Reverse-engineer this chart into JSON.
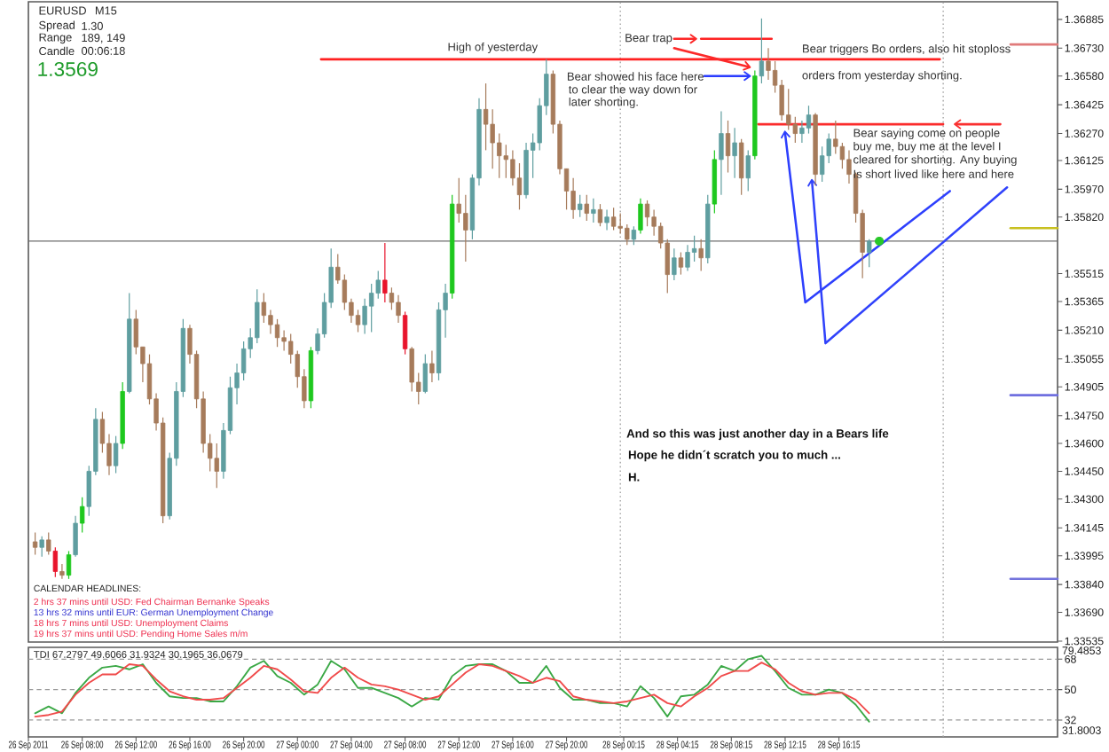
{
  "chart_data": [
    {
      "type": "candlestick",
      "title": "EURUSD",
      "subtitle": "M15",
      "x": [
        "2011-09-26T04:30",
        "2011-09-26T05:00",
        "2011-09-26T05:30",
        "2011-09-26T06:00",
        "2011-09-26T06:30",
        "2011-09-26T07:00",
        "2011-09-26T07:30",
        "2011-09-26T08:00",
        "2011-09-26T08:30",
        "2011-09-26T09:00",
        "2011-09-26T09:30",
        "2011-09-26T10:00",
        "2011-09-26T10:30",
        "2011-09-26T11:00",
        "2011-09-26T11:30",
        "2011-09-26T12:00",
        "2011-09-26T12:30",
        "2011-09-26T13:00",
        "2011-09-26T13:30",
        "2011-09-26T14:00",
        "2011-09-26T14:30",
        "2011-09-26T15:00",
        "2011-09-26T15:30",
        "2011-09-26T16:00",
        "2011-09-26T16:30",
        "2011-09-26T17:00",
        "2011-09-26T17:30",
        "2011-09-26T18:00",
        "2011-09-26T18:30",
        "2011-09-26T19:00",
        "2011-09-26T19:30",
        "2011-09-26T20:00",
        "2011-09-26T20:30",
        "2011-09-26T21:00",
        "2011-09-26T21:30",
        "2011-09-26T22:00",
        "2011-09-26T22:30",
        "2011-09-26T23:00",
        "2011-09-26T23:30",
        "2011-09-27T00:00",
        "2011-09-27T00:30",
        "2011-09-27T01:00",
        "2011-09-27T01:30",
        "2011-09-27T02:00",
        "2011-09-27T02:30",
        "2011-09-27T03:00",
        "2011-09-27T03:30",
        "2011-09-27T04:00",
        "2011-09-27T04:30",
        "2011-09-27T05:00",
        "2011-09-27T05:30",
        "2011-09-27T06:00",
        "2011-09-27T06:30",
        "2011-09-27T07:00",
        "2011-09-27T07:30",
        "2011-09-27T08:00",
        "2011-09-27T08:30",
        "2011-09-27T09:00",
        "2011-09-27T09:30",
        "2011-09-27T10:00",
        "2011-09-27T10:30",
        "2011-09-27T11:00",
        "2011-09-27T11:30",
        "2011-09-27T12:00",
        "2011-09-27T12:30",
        "2011-09-27T13:00",
        "2011-09-27T13:30",
        "2011-09-27T14:00",
        "2011-09-27T14:30",
        "2011-09-27T15:00",
        "2011-09-27T15:30",
        "2011-09-27T16:00",
        "2011-09-27T16:30",
        "2011-09-27T17:00",
        "2011-09-27T17:30",
        "2011-09-27T18:00",
        "2011-09-27T18:30",
        "2011-09-27T19:00",
        "2011-09-27T19:30",
        "2011-09-27T20:00",
        "2011-09-27T20:30",
        "2011-09-27T21:00",
        "2011-09-27T21:30",
        "2011-09-27T22:00",
        "2011-09-27T22:30",
        "2011-09-27T23:00",
        "2011-09-27T23:30",
        "2011-09-28T00:00",
        "2011-09-28T00:30",
        "2011-09-28T01:00",
        "2011-09-28T01:30",
        "2011-09-28T02:00",
        "2011-09-28T02:30",
        "2011-09-28T03:00",
        "2011-09-28T03:30",
        "2011-09-28T04:00",
        "2011-09-28T04:30",
        "2011-09-28T05:00",
        "2011-09-28T05:30",
        "2011-09-28T06:00",
        "2011-09-28T06:30",
        "2011-09-28T07:00",
        "2011-09-28T07:30",
        "2011-09-28T08:00",
        "2011-09-28T08:30",
        "2011-09-28T09:00",
        "2011-09-28T09:30",
        "2011-09-28T10:00",
        "2011-09-28T10:30",
        "2011-09-28T11:00",
        "2011-09-28T11:30",
        "2011-09-28T12:00",
        "2011-09-28T12:30",
        "2011-09-28T13:00",
        "2011-09-28T13:30",
        "2011-09-28T14:00",
        "2011-09-28T14:30",
        "2011-09-28T15:00",
        "2011-09-28T15:30",
        "2011-09-28T16:00",
        "2011-09-28T16:30",
        "2011-09-28T17:00",
        "2011-09-28T17:30",
        "2011-09-28T18:00",
        "2011-09-28T18:30"
      ],
      "ohlc": [
        [
          1.3407,
          1.3412,
          1.34,
          1.3404
        ],
        [
          1.3404,
          1.341,
          1.3399,
          1.3408
        ],
        [
          1.3408,
          1.3412,
          1.34,
          1.3402
        ],
        [
          1.3402,
          1.3404,
          1.3388,
          1.3391
        ],
        [
          1.3391,
          1.3395,
          1.3387,
          1.3389
        ],
        [
          1.3389,
          1.3402,
          1.3387,
          1.34
        ],
        [
          1.34,
          1.3421,
          1.3399,
          1.3417
        ],
        [
          1.3417,
          1.3431,
          1.3412,
          1.3426
        ],
        [
          1.3426,
          1.3448,
          1.3421,
          1.3445
        ],
        [
          1.3445,
          1.3479,
          1.3443,
          1.3473
        ],
        [
          1.3473,
          1.3477,
          1.3455,
          1.346
        ],
        [
          1.346,
          1.3465,
          1.3443,
          1.3448
        ],
        [
          1.3448,
          1.3464,
          1.3444,
          1.346
        ],
        [
          1.346,
          1.3493,
          1.3457,
          1.3488
        ],
        [
          1.3488,
          1.3541,
          1.3487,
          1.3527
        ],
        [
          1.3527,
          1.3532,
          1.3508,
          1.3512
        ],
        [
          1.3512,
          1.3512,
          1.3493,
          1.3503
        ],
        [
          1.3503,
          1.3508,
          1.3481,
          1.3484
        ],
        [
          1.3484,
          1.3487,
          1.3467,
          1.3471
        ],
        [
          1.3471,
          1.3474,
          1.3417,
          1.3421
        ],
        [
          1.3421,
          1.3455,
          1.3419,
          1.3452
        ],
        [
          1.3452,
          1.3493,
          1.3448,
          1.3488
        ],
        [
          1.3488,
          1.3527,
          1.3485,
          1.3522
        ],
        [
          1.3522,
          1.3524,
          1.3503,
          1.3508
        ],
        [
          1.3508,
          1.351,
          1.3479,
          1.3484
        ],
        [
          1.3484,
          1.3488,
          1.3455,
          1.346
        ],
        [
          1.346,
          1.3465,
          1.3445,
          1.3452
        ],
        [
          1.3452,
          1.346,
          1.3436,
          1.3445
        ],
        [
          1.3445,
          1.3471,
          1.3441,
          1.3467
        ],
        [
          1.3467,
          1.3496,
          1.3465,
          1.349
        ],
        [
          1.349,
          1.3503,
          1.3481,
          1.3498
        ],
        [
          1.3498,
          1.3515,
          1.3494,
          1.3511
        ],
        [
          1.3511,
          1.3522,
          1.3506,
          1.3517
        ],
        [
          1.3517,
          1.3543,
          1.3514,
          1.3536
        ],
        [
          1.3536,
          1.3541,
          1.3525,
          1.3529
        ],
        [
          1.3529,
          1.3532,
          1.3519,
          1.3524
        ],
        [
          1.3524,
          1.3527,
          1.3512,
          1.3517
        ],
        [
          1.3517,
          1.3521,
          1.351,
          1.3515
        ],
        [
          1.3515,
          1.3519,
          1.3503,
          1.3508
        ],
        [
          1.3508,
          1.351,
          1.349,
          1.3496
        ],
        [
          1.3496,
          1.35,
          1.3479,
          1.3483
        ],
        [
          1.3483,
          1.3512,
          1.3479,
          1.351
        ],
        [
          1.351,
          1.3522,
          1.3508,
          1.3519
        ],
        [
          1.3519,
          1.3541,
          1.3517,
          1.3536
        ],
        [
          1.3536,
          1.3565,
          1.3533,
          1.3555
        ],
        [
          1.3555,
          1.3562,
          1.3546,
          1.3548
        ],
        [
          1.3548,
          1.3551,
          1.3532,
          1.3536
        ],
        [
          1.3536,
          1.3538,
          1.3525,
          1.3529
        ],
        [
          1.3529,
          1.3532,
          1.352,
          1.3524
        ],
        [
          1.3524,
          1.3538,
          1.3519,
          1.3534
        ],
        [
          1.3534,
          1.3546,
          1.352,
          1.3541
        ],
        [
          1.3541,
          1.3553,
          1.3538,
          1.3548
        ],
        [
          1.3548,
          1.3568,
          1.3536,
          1.3541
        ],
        [
          1.3541,
          1.3544,
          1.3532,
          1.3536
        ],
        [
          1.3536,
          1.354,
          1.3525,
          1.3529
        ],
        [
          1.3529,
          1.3531,
          1.3508,
          1.3511
        ],
        [
          1.3511,
          1.3512,
          1.3488,
          1.3493
        ],
        [
          1.3493,
          1.3498,
          1.3481,
          1.3488
        ],
        [
          1.3488,
          1.3508,
          1.3487,
          1.3503
        ],
        [
          1.3503,
          1.351,
          1.3493,
          1.3498
        ],
        [
          1.3498,
          1.3536,
          1.3494,
          1.3532
        ],
        [
          1.3532,
          1.3546,
          1.3517,
          1.3541
        ],
        [
          1.3541,
          1.3594,
          1.3538,
          1.3589
        ],
        [
          1.3589,
          1.3603,
          1.3579,
          1.3584
        ],
        [
          1.3584,
          1.3594,
          1.3558,
          1.3575
        ],
        [
          1.3575,
          1.3605,
          1.357,
          1.3603
        ],
        [
          1.3603,
          1.3646,
          1.3599,
          1.364
        ],
        [
          1.364,
          1.3654,
          1.3618,
          1.3632
        ],
        [
          1.3632,
          1.364,
          1.3608,
          1.3622
        ],
        [
          1.3622,
          1.3627,
          1.3603,
          1.3615
        ],
        [
          1.3615,
          1.3621,
          1.3603,
          1.3613
        ],
        [
          1.3613,
          1.3618,
          1.3599,
          1.3603
        ],
        [
          1.3603,
          1.3611,
          1.3586,
          1.3594
        ],
        [
          1.3594,
          1.3622,
          1.3592,
          1.3618
        ],
        [
          1.3618,
          1.3627,
          1.3603,
          1.3622
        ],
        [
          1.3622,
          1.3646,
          1.3618,
          1.3642
        ],
        [
          1.3642,
          1.3667,
          1.3637,
          1.3659
        ],
        [
          1.3659,
          1.3661,
          1.3627,
          1.3632
        ],
        [
          1.3632,
          1.3634,
          1.3605,
          1.3608
        ],
        [
          1.3608,
          1.3608,
          1.3586,
          1.3596
        ],
        [
          1.3596,
          1.3603,
          1.3581,
          1.3586
        ],
        [
          1.3586,
          1.3594,
          1.3582,
          1.3589
        ],
        [
          1.3589,
          1.3594,
          1.358,
          1.3584
        ],
        [
          1.3584,
          1.3592,
          1.3579,
          1.3586
        ],
        [
          1.3586,
          1.3589,
          1.3577,
          1.3579
        ],
        [
          1.3579,
          1.3586,
          1.3575,
          1.3582
        ],
        [
          1.3582,
          1.3587,
          1.3575,
          1.3577
        ],
        [
          1.3577,
          1.3584,
          1.3573,
          1.3576
        ],
        [
          1.3576,
          1.3578,
          1.3567,
          1.357
        ],
        [
          1.357,
          1.3577,
          1.3567,
          1.3575
        ],
        [
          1.3575,
          1.3592,
          1.3573,
          1.3589
        ],
        [
          1.3589,
          1.3591,
          1.3577,
          1.3582
        ],
        [
          1.3582,
          1.3586,
          1.3572,
          1.3577
        ],
        [
          1.3577,
          1.3579,
          1.3565,
          1.3568
        ],
        [
          1.3568,
          1.357,
          1.3541,
          1.3551
        ],
        [
          1.3551,
          1.3565,
          1.3548,
          1.356
        ],
        [
          1.356,
          1.3563,
          1.3551,
          1.3555
        ],
        [
          1.3555,
          1.3567,
          1.3553,
          1.3563
        ],
        [
          1.3563,
          1.3572,
          1.3558,
          1.3565
        ],
        [
          1.3565,
          1.357,
          1.3553,
          1.356
        ],
        [
          1.356,
          1.3594,
          1.3557,
          1.3589
        ],
        [
          1.3589,
          1.3618,
          1.3584,
          1.3613
        ],
        [
          1.3613,
          1.3639,
          1.3594,
          1.3627
        ],
        [
          1.3627,
          1.3634,
          1.3606,
          1.3615
        ],
        [
          1.3615,
          1.363,
          1.3603,
          1.3622
        ],
        [
          1.3622,
          1.3624,
          1.3594,
          1.3603
        ],
        [
          1.3603,
          1.3618,
          1.3596,
          1.3615
        ],
        [
          1.3615,
          1.3661,
          1.3613,
          1.3658
        ],
        [
          1.3658,
          1.3689,
          1.3654,
          1.3666
        ],
        [
          1.3666,
          1.3673,
          1.3656,
          1.3661
        ],
        [
          1.3661,
          1.3666,
          1.3649,
          1.3653
        ],
        [
          1.3653,
          1.3656,
          1.3634,
          1.3637
        ],
        [
          1.3637,
          1.3651,
          1.3629,
          1.3632
        ],
        [
          1.3632,
          1.3636,
          1.3622,
          1.3627
        ],
        [
          1.3627,
          1.3634,
          1.3622,
          1.363
        ],
        [
          1.363,
          1.3642,
          1.3627,
          1.3637
        ],
        [
          1.3637,
          1.3638,
          1.3599,
          1.3605
        ],
        [
          1.3605,
          1.362,
          1.3601,
          1.3615
        ],
        [
          1.3615,
          1.3627,
          1.3611,
          1.3624
        ],
        [
          1.3624,
          1.3634,
          1.3616,
          1.362
        ],
        [
          1.362,
          1.3622,
          1.3608,
          1.3613
        ],
        [
          1.3613,
          1.3618,
          1.36,
          1.3605
        ],
        [
          1.3605,
          1.3606,
          1.3579,
          1.3584
        ],
        [
          1.3584,
          1.3586,
          1.3549,
          1.3563
        ],
        [
          1.3563,
          1.357,
          1.3555,
          1.3569
        ]
      ],
      "colors": [
        "#a67b5b",
        "#5f9ea0",
        "#a67b5b",
        "#e8142c",
        "#a67b5b",
        "#1ec81e",
        "#5f9ea0",
        "#1ec81e",
        "#5f9ea0",
        "#5f9ea0",
        "#a67b5b",
        "#a67b5b",
        "#5f9ea0",
        "#1ec81e",
        "#5f9ea0",
        "#a67b5b",
        "#a67b5b",
        "#a67b5b",
        "#a67b5b",
        "#a67b5b",
        "#5f9ea0",
        "#5f9ea0",
        "#5f9ea0",
        "#a67b5b",
        "#a67b5b",
        "#a67b5b",
        "#a67b5b",
        "#a67b5b",
        "#5f9ea0",
        "#5f9ea0",
        "#5f9ea0",
        "#5f9ea0",
        "#5f9ea0",
        "#5f9ea0",
        "#a67b5b",
        "#a67b5b",
        "#a67b5b",
        "#a67b5b",
        "#a67b5b",
        "#a67b5b",
        "#a67b5b",
        "#1ec81e",
        "#5f9ea0",
        "#5f9ea0",
        "#5f9ea0",
        "#a67b5b",
        "#a67b5b",
        "#a67b5b",
        "#a67b5b",
        "#5f9ea0",
        "#5f9ea0",
        "#5f9ea0",
        "#e8142c",
        "#a67b5b",
        "#a67b5b",
        "#e8142c",
        "#a67b5b",
        "#a67b5b",
        "#5f9ea0",
        "#a67b5b",
        "#5f9ea0",
        "#5f9ea0",
        "#1ec81e",
        "#a67b5b",
        "#a67b5b",
        "#5f9ea0",
        "#5f9ea0",
        "#a67b5b",
        "#a67b5b",
        "#a67b5b",
        "#a67b5b",
        "#a67b5b",
        "#a67b5b",
        "#5f9ea0",
        "#5f9ea0",
        "#5f9ea0",
        "#5f9ea0",
        "#a67b5b",
        "#a67b5b",
        "#a67b5b",
        "#a67b5b",
        "#5f9ea0",
        "#a67b5b",
        "#5f9ea0",
        "#a67b5b",
        "#5f9ea0",
        "#a67b5b",
        "#a67b5b",
        "#a67b5b",
        "#5f9ea0",
        "#1ec81e",
        "#a67b5b",
        "#a67b5b",
        "#a67b5b",
        "#a67b5b",
        "#5f9ea0",
        "#a67b5b",
        "#5f9ea0",
        "#5f9ea0",
        "#a67b5b",
        "#5f9ea0",
        "#1ec81e",
        "#5f9ea0",
        "#a67b5b",
        "#5f9ea0",
        "#a67b5b",
        "#5f9ea0",
        "#1ec81e",
        "#5f9ea0",
        "#a67b5b",
        "#a67b5b",
        "#a67b5b",
        "#a67b5b",
        "#a67b5b",
        "#5f9ea0",
        "#5f9ea0",
        "#a67b5b",
        "#5f9ea0",
        "#5f9ea0",
        "#a67b5b",
        "#a67b5b",
        "#a67b5b",
        "#a67b5b",
        "#a67b5b",
        "#5f9ea0"
      ],
      "series": [
        {
          "type": "line",
          "color": "#ff2020",
          "x": [
            "2011-09-27T01:45",
            "2011-09-28T23:45"
          ],
          "values": [
            1.3667,
            1.3667
          ]
        },
        {
          "type": "line",
          "color": "#fe2323",
          "x": [
            "2011-09-28T06:00",
            "2011-09-28T11:15"
          ],
          "values": [
            1.3678,
            1.3678
          ]
        },
        {
          "type": "line",
          "color": "#fd2626",
          "x": [
            "2011-09-28T04:00",
            "2011-09-28T05:30"
          ],
          "values": [
            1.3678,
            1.3678
          ]
        },
        {
          "type": "line",
          "color": "#fc2929",
          "x": [
            "2011-09-28T04:00",
            "2011-09-28T09:30"
          ],
          "values": [
            1.3673,
            1.3663
          ]
        },
        {
          "type": "line",
          "color": "#2a3cff",
          "x": [
            "2011-09-28T06:15",
            "2011-09-28T09:30"
          ],
          "values": [
            1.3658,
            1.3658
          ]
        },
        {
          "type": "line",
          "color": "#fb2c2c",
          "x": [
            "2011-09-28T10:15",
            "2011-09-29T00:00"
          ],
          "values": [
            1.3632,
            1.3632
          ]
        },
        {
          "type": "line",
          "color": "#fa2f2f",
          "x": [
            "2011-09-29T04:15",
            "2011-09-29T01:00"
          ],
          "values": [
            1.3632,
            1.3632
          ]
        },
        {
          "type": "line",
          "color": "#2d3ffd",
          "x": [
            "2011-09-29T00:30",
            "2011-09-28T13:45",
            "2011-09-28T12:15"
          ],
          "values": [
            1.3596,
            1.3536,
            1.3627
          ]
        },
        {
          "type": "line",
          "color": "#3042fb",
          "x": [
            "2011-09-29T04:45",
            "2011-09-28T15:15",
            "2011-09-28T14:15"
          ],
          "values": [
            1.3598,
            1.3514,
            1.3601
          ]
        },
        {
          "type": "line",
          "color": "#e07a7a",
          "x": [
            "2011-09-29T05:00",
            "2011-09-29T08:30"
          ],
          "values": [
            1.3675,
            1.3675
          ]
        },
        {
          "type": "line",
          "color": "#c8c020",
          "x": [
            "2011-09-29T05:00",
            "2011-09-29T08:30"
          ],
          "values": [
            1.3576,
            1.3576
          ]
        },
        {
          "type": "line",
          "color": "#7070e0",
          "x": [
            "2011-09-29T05:00",
            "2011-09-29T08:30"
          ],
          "values": [
            1.3486,
            1.3486
          ]
        },
        {
          "type": "line",
          "color": "#7474dc",
          "x": [
            "2011-09-29T05:00",
            "2011-09-29T08:30"
          ],
          "values": [
            1.3387,
            1.3387
          ]
        },
        {
          "type": "scatter",
          "color": "#28c828",
          "marker": "circle",
          "x": [
            "2011-09-28T19:15"
          ],
          "values": [
            1.3569
          ]
        }
      ],
      "ref_lines": [
        {
          "axis": "y",
          "value": 1.3569,
          "color": "#6e6e6e",
          "line_style": "solid"
        },
        {
          "axis": "x",
          "value": "2011-09-28T00:00",
          "color": "#a0a0a0",
          "line_style": "dotted"
        },
        {
          "axis": "x",
          "value": "2011-09-29T00:00",
          "color": "#a0a0a0",
          "line_style": "dotted"
        }
      ],
      "annotations": [
        "Spread",
        "1.30",
        "Range",
        "189, 149",
        "Candle",
        "00:06:18",
        "1.3569",
        "High of yesterday",
        "Bear trap",
        "Bear showed his face here",
        "to clear the way down for",
        "later shorting.",
        "Bear triggers Bo orders, also hit stoploss",
        "orders from yesterday shorting.",
        "Bear saying come on people",
        "buy me, buy me at the level I",
        "cleared for shorting. Any buying",
        "Is short lived like here and here",
        "And so this was just another day in a Bears life",
        "Hope he didn´t scratch you to much ...",
        "H.",
        "CALENDAR HEADLINES:",
        "2 hrs 37 mins until USD: Fed Chairman Bernanke Speaks",
        "13 hrs 32 mins until EUR: German Unemployment Change",
        "18 hrs 7 mins until USD: Unemployment Claims",
        "19 hrs 37 mins until USD: Pending Home Sales m/m"
      ],
      "xlim": [
        "2011-09-26T04:00",
        "2011-09-29T08:30"
      ],
      "ylim": [
        1.3353,
        1.3698
      ],
      "yticks": [
        1.36885,
        {
          "value": 1.3673,
          "label": "1.36730"
        },
        {
          "value": 1.3658,
          "label": "1.36580"
        },
        1.36425,
        {
          "value": 1.3627,
          "label": "1.36270"
        },
        1.36125,
        {
          "value": 1.3597,
          "label": "1.35970"
        },
        {
          "value": 1.3582,
          "label": "1.35820"
        },
        1.35515,
        1.35365,
        {
          "value": 1.3521,
          "label": "1.35210"
        },
        1.35055,
        1.34905,
        {
          "value": 1.3475,
          "label": "1.34750"
        },
        {
          "value": 1.346,
          "label": "1.34600"
        },
        {
          "value": 1.3445,
          "label": "1.34450"
        },
        {
          "value": 1.343,
          "label": "1.34300"
        },
        1.34145,
        1.33995,
        {
          "value": 1.3384,
          "label": "1.33840"
        },
        {
          "value": 1.3369,
          "label": "1.33690"
        },
        1.33535
      ],
      "tick_labels": "y"
    },
    {
      "type": "line",
      "title": "TDI 67.2797 49.6066 31.9324 30.1965 36.0679",
      "x": [
        "2011-09-26T04:30",
        "2011-09-26T05:30",
        "2011-09-26T06:30",
        "2011-09-26T07:30",
        "2011-09-26T08:30",
        "2011-09-26T09:30",
        "2011-09-26T10:30",
        "2011-09-26T11:30",
        "2011-09-26T12:30",
        "2011-09-26T13:30",
        "2011-09-26T14:30",
        "2011-09-26T15:30",
        "2011-09-26T16:30",
        "2011-09-26T17:30",
        "2011-09-26T18:30",
        "2011-09-26T19:30",
        "2011-09-26T20:30",
        "2011-09-26T21:30",
        "2011-09-26T22:30",
        "2011-09-26T23:30",
        "2011-09-27T00:30",
        "2011-09-27T01:30",
        "2011-09-27T02:30",
        "2011-09-27T03:30",
        "2011-09-27T04:30",
        "2011-09-27T05:30",
        "2011-09-27T06:30",
        "2011-09-27T07:30",
        "2011-09-27T08:30",
        "2011-09-27T09:30",
        "2011-09-27T10:30",
        "2011-09-27T11:30",
        "2011-09-27T12:30",
        "2011-09-27T13:30",
        "2011-09-27T14:30",
        "2011-09-27T15:30",
        "2011-09-27T16:30",
        "2011-09-27T17:30",
        "2011-09-27T18:30",
        "2011-09-27T19:30",
        "2011-09-27T20:30",
        "2011-09-27T21:30",
        "2011-09-27T22:30",
        "2011-09-27T23:30",
        "2011-09-28T00:30",
        "2011-09-28T01:30",
        "2011-09-28T02:30",
        "2011-09-28T03:30",
        "2011-09-28T04:30",
        "2011-09-28T05:30",
        "2011-09-28T06:30",
        "2011-09-28T07:30",
        "2011-09-28T08:30",
        "2011-09-28T09:30",
        "2011-09-28T10:30",
        "2011-09-28T11:30",
        "2011-09-28T12:30",
        "2011-09-28T13:30",
        "2011-09-28T14:30",
        "2011-09-28T15:30",
        "2011-09-28T16:30",
        "2011-09-28T17:30",
        "2011-09-28T18:30"
      ],
      "series": [
        {
          "color": "#3aa845",
          "values": [
            36,
            40,
            36,
            48,
            57,
            63,
            64,
            62,
            65,
            54,
            46,
            45,
            45,
            43,
            43,
            52,
            63,
            67,
            58,
            54,
            47,
            53,
            67,
            62,
            51,
            51,
            48,
            45,
            40,
            45,
            44,
            58,
            64,
            65,
            65,
            61,
            54,
            54,
            64,
            51,
            44,
            44,
            42,
            42,
            40,
            52,
            45,
            34,
            46,
            47,
            53,
            64,
            61,
            68,
            70,
            61,
            51,
            47,
            47,
            50,
            48,
            41,
            31
          ]
        },
        {
          "color": "#f04a4a",
          "values": [
            34,
            35,
            37,
            47,
            54,
            59,
            59,
            65,
            64,
            56,
            49,
            46,
            44,
            44,
            45,
            51,
            57,
            64,
            62,
            56,
            49,
            48,
            57,
            63,
            57,
            53,
            52,
            50,
            47,
            44,
            46,
            53,
            60,
            65,
            64,
            61,
            58,
            54,
            57,
            55,
            46,
            44,
            43,
            42,
            43,
            45,
            47,
            42,
            40,
            46,
            51,
            58,
            61,
            61,
            66,
            62,
            54,
            49,
            47,
            48,
            48,
            44,
            36
          ]
        }
      ],
      "ref_lines": [
        {
          "axis": "y",
          "value": 68,
          "color": "#9a9a9a",
          "line_style": "dashed"
        },
        {
          "axis": "y",
          "value": 50,
          "color": "#9a9a9a",
          "line_style": "dashed"
        },
        {
          "axis": "y",
          "value": 32,
          "color": "#9a9a9a",
          "line_style": "dashed"
        },
        {
          "axis": "x",
          "value": "2011-09-28T00:00",
          "color": "#a0a0a0",
          "line_style": "dotted"
        },
        {
          "axis": "x",
          "value": "2011-09-29T00:00",
          "color": "#a0a0a0",
          "line_style": "dotted"
        }
      ],
      "annotations": [
        "79.4853",
        "31.8003"
      ],
      "xlim": [
        "2011-09-26T04:00",
        "2011-09-29T08:30"
      ],
      "ylim": [
        22,
        75
      ],
      "yticks": [
        68,
        50,
        32
      ],
      "xticks": [
        {
          "value": "2011-09-26T04:00",
          "label": "26 Sep 2011"
        },
        {
          "value": "2011-09-26T08:00",
          "label": "26 Sep 08:00"
        },
        {
          "value": "2011-09-26T12:00",
          "label": "26 Sep 12:00"
        },
        {
          "value": "2011-09-26T16:00",
          "label": "26 Sep 16:00"
        },
        {
          "value": "2011-09-26T20:00",
          "label": "26 Sep 20:00"
        },
        {
          "value": "2011-09-27T00:00",
          "label": "27 Sep 00:00"
        },
        {
          "value": "2011-09-27T04:00",
          "label": "27 Sep 04:00"
        },
        {
          "value": "2011-09-27T08:00",
          "label": "27 Sep 08:00"
        },
        {
          "value": "2011-09-27T12:00",
          "label": "27 Sep 12:00"
        },
        {
          "value": "2011-09-27T16:00",
          "label": "27 Sep 16:00"
        },
        {
          "value": "2011-09-27T20:00",
          "label": "27 Sep 20:00"
        },
        {
          "value": "2011-09-28T00:15",
          "label": "28 Sep 00:15"
        },
        {
          "value": "2011-09-28T04:15",
          "label": "28 Sep 04:15"
        },
        {
          "value": "2011-09-28T08:15",
          "label": "28 Sep 08:15"
        },
        {
          "value": "2011-09-28T12:15",
          "label": "28 Sep 12:15"
        },
        {
          "value": "2011-09-28T16:15",
          "label": "28 Sep 16:15"
        }
      ]
    }
  ]
}
